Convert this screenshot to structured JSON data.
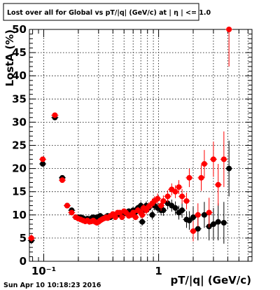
{
  "title": "Lost over all for Global vs pT/|q| (GeV/c) at | η | <= 1.0",
  "timestamp": "Sun Apr 10 10:18:23 2016",
  "chart_data": {
    "type": "scatter",
    "title": "Lost over all for Global vs pT/|q| (GeV/c) at | η | <= 1.0",
    "xlabel": "pT/|q| (GeV/c)",
    "ylabel": "LostA (%)",
    "xscale": "log",
    "xlim": [
      0.075,
      6.5
    ],
    "ylim": [
      0,
      50
    ],
    "x_tick_labels": [
      "10⁻¹",
      "1"
    ],
    "y_tick_labels": [
      "0",
      "5",
      "10",
      "15",
      "20",
      "25",
      "30",
      "35",
      "40",
      "45",
      "50"
    ],
    "grid": true,
    "colors": {
      "black_series": "#000000",
      "red_series": "#ff0000"
    },
    "series": [
      {
        "color": "#000000",
        "points": [
          {
            "x": 0.078,
            "y": 4.5,
            "err": 0.8
          },
          {
            "x": 0.098,
            "y": 21.0,
            "err": 0.4
          },
          {
            "x": 0.125,
            "y": 31.0,
            "err": 0.4
          },
          {
            "x": 0.145,
            "y": 18.0,
            "err": 0.4
          },
          {
            "x": 0.16,
            "y": 12.0,
            "err": 0.4
          },
          {
            "x": 0.175,
            "y": 11.0,
            "err": 0.3
          },
          {
            "x": 0.19,
            "y": 9.5,
            "err": 0.3
          },
          {
            "x": 0.2,
            "y": 9.5,
            "err": 0.3
          },
          {
            "x": 0.21,
            "y": 9.5,
            "err": 0.3
          },
          {
            "x": 0.22,
            "y": 9.3,
            "err": 0.3
          },
          {
            "x": 0.23,
            "y": 9.0,
            "err": 0.3
          },
          {
            "x": 0.24,
            "y": 9.2,
            "err": 0.3
          },
          {
            "x": 0.25,
            "y": 9.0,
            "err": 0.3
          },
          {
            "x": 0.26,
            "y": 9.3,
            "err": 0.3
          },
          {
            "x": 0.27,
            "y": 9.5,
            "err": 0.3
          },
          {
            "x": 0.28,
            "y": 9.0,
            "err": 0.3
          },
          {
            "x": 0.29,
            "y": 9.5,
            "err": 0.3
          },
          {
            "x": 0.3,
            "y": 9.6,
            "err": 0.4
          },
          {
            "x": 0.31,
            "y": 9.8,
            "err": 0.4
          },
          {
            "x": 0.32,
            "y": 9.5,
            "err": 0.4
          },
          {
            "x": 0.33,
            "y": 9.2,
            "err": 0.4
          },
          {
            "x": 0.34,
            "y": 9.4,
            "err": 0.4
          },
          {
            "x": 0.35,
            "y": 9.6,
            "err": 0.4
          },
          {
            "x": 0.36,
            "y": 9.8,
            "err": 0.4
          },
          {
            "x": 0.38,
            "y": 9.5,
            "err": 0.4
          },
          {
            "x": 0.4,
            "y": 9.8,
            "err": 0.4
          },
          {
            "x": 0.42,
            "y": 10.0,
            "err": 0.5
          },
          {
            "x": 0.44,
            "y": 10.2,
            "err": 0.5
          },
          {
            "x": 0.46,
            "y": 10.0,
            "err": 0.5
          },
          {
            "x": 0.48,
            "y": 10.0,
            "err": 0.5
          },
          {
            "x": 0.5,
            "y": 10.5,
            "err": 0.5
          },
          {
            "x": 0.52,
            "y": 10.3,
            "err": 0.5
          },
          {
            "x": 0.55,
            "y": 10.8,
            "err": 0.6
          },
          {
            "x": 0.58,
            "y": 10.5,
            "err": 0.6
          },
          {
            "x": 0.6,
            "y": 11.0,
            "err": 0.6
          },
          {
            "x": 0.63,
            "y": 10.6,
            "err": 0.6
          },
          {
            "x": 0.66,
            "y": 11.5,
            "err": 0.7
          },
          {
            "x": 0.7,
            "y": 12.0,
            "err": 0.8
          },
          {
            "x": 0.72,
            "y": 8.5,
            "err": 0.8
          },
          {
            "x": 0.74,
            "y": 11.0,
            "err": 0.8
          },
          {
            "x": 0.78,
            "y": 12.0,
            "err": 0.9
          },
          {
            "x": 0.82,
            "y": 11.5,
            "err": 0.9
          },
          {
            "x": 0.88,
            "y": 10.0,
            "err": 1.0
          },
          {
            "x": 0.92,
            "y": 12.0,
            "err": 1.0
          },
          {
            "x": 0.98,
            "y": 11.5,
            "err": 1.1
          },
          {
            "x": 1.05,
            "y": 11.0,
            "err": 1.1
          },
          {
            "x": 1.1,
            "y": 11.0,
            "err": 1.2
          },
          {
            "x": 1.2,
            "y": 12.5,
            "err": 1.3
          },
          {
            "x": 1.3,
            "y": 12.0,
            "err": 1.3
          },
          {
            "x": 1.4,
            "y": 11.5,
            "err": 1.4
          },
          {
            "x": 1.5,
            "y": 10.5,
            "err": 1.5
          },
          {
            "x": 1.6,
            "y": 11.0,
            "err": 1.6
          },
          {
            "x": 1.75,
            "y": 9.0,
            "err": 1.8
          },
          {
            "x": 1.85,
            "y": 8.8,
            "err": 2.0
          },
          {
            "x": 2.0,
            "y": 9.5,
            "err": 2.2
          },
          {
            "x": 2.2,
            "y": 7.0,
            "err": 2.5
          },
          {
            "x": 2.5,
            "y": 10.0,
            "err": 2.8
          },
          {
            "x": 2.75,
            "y": 7.5,
            "err": 3.0
          },
          {
            "x": 3.0,
            "y": 8.0,
            "err": 3.5
          },
          {
            "x": 3.3,
            "y": 8.5,
            "err": 4.0
          },
          {
            "x": 3.7,
            "y": 8.3,
            "err": 4.5
          },
          {
            "x": 4.1,
            "y": 20.0,
            "err": 6.0
          }
        ]
      },
      {
        "color": "#ff0000",
        "points": [
          {
            "x": 0.078,
            "y": 5.0,
            "err": 0.8
          },
          {
            "x": 0.098,
            "y": 22.0,
            "err": 0.4
          },
          {
            "x": 0.125,
            "y": 31.5,
            "err": 0.4
          },
          {
            "x": 0.145,
            "y": 17.5,
            "err": 0.4
          },
          {
            "x": 0.16,
            "y": 12.0,
            "err": 0.4
          },
          {
            "x": 0.175,
            "y": 10.5,
            "err": 0.3
          },
          {
            "x": 0.19,
            "y": 9.5,
            "err": 0.3
          },
          {
            "x": 0.2,
            "y": 9.2,
            "err": 0.3
          },
          {
            "x": 0.21,
            "y": 9.0,
            "err": 0.3
          },
          {
            "x": 0.22,
            "y": 8.8,
            "err": 0.3
          },
          {
            "x": 0.23,
            "y": 8.6,
            "err": 0.3
          },
          {
            "x": 0.24,
            "y": 8.8,
            "err": 0.3
          },
          {
            "x": 0.25,
            "y": 8.5,
            "err": 0.3
          },
          {
            "x": 0.26,
            "y": 8.6,
            "err": 0.3
          },
          {
            "x": 0.27,
            "y": 8.8,
            "err": 0.3
          },
          {
            "x": 0.28,
            "y": 8.5,
            "err": 0.3
          },
          {
            "x": 0.29,
            "y": 8.3,
            "err": 0.3
          },
          {
            "x": 0.3,
            "y": 8.5,
            "err": 0.4
          },
          {
            "x": 0.31,
            "y": 8.8,
            "err": 0.4
          },
          {
            "x": 0.32,
            "y": 9.0,
            "err": 0.4
          },
          {
            "x": 0.33,
            "y": 9.2,
            "err": 0.4
          },
          {
            "x": 0.34,
            "y": 9.3,
            "err": 0.4
          },
          {
            "x": 0.35,
            "y": 9.5,
            "err": 0.4
          },
          {
            "x": 0.36,
            "y": 9.3,
            "err": 0.4
          },
          {
            "x": 0.38,
            "y": 9.8,
            "err": 0.4
          },
          {
            "x": 0.4,
            "y": 10.2,
            "err": 0.4
          },
          {
            "x": 0.42,
            "y": 9.5,
            "err": 0.5
          },
          {
            "x": 0.44,
            "y": 10.5,
            "err": 0.5
          },
          {
            "x": 0.46,
            "y": 10.5,
            "err": 0.5
          },
          {
            "x": 0.48,
            "y": 9.5,
            "err": 0.5
          },
          {
            "x": 0.5,
            "y": 10.8,
            "err": 0.5
          },
          {
            "x": 0.52,
            "y": 10.5,
            "err": 0.5
          },
          {
            "x": 0.55,
            "y": 9.8,
            "err": 0.6
          },
          {
            "x": 0.58,
            "y": 10.0,
            "err": 0.6
          },
          {
            "x": 0.6,
            "y": 10.5,
            "err": 0.6
          },
          {
            "x": 0.63,
            "y": 9.5,
            "err": 0.6
          },
          {
            "x": 0.66,
            "y": 11.0,
            "err": 0.7
          },
          {
            "x": 0.7,
            "y": 10.5,
            "err": 0.8
          },
          {
            "x": 0.72,
            "y": 10.0,
            "err": 0.8
          },
          {
            "x": 0.74,
            "y": 11.5,
            "err": 0.8
          },
          {
            "x": 0.78,
            "y": 11.0,
            "err": 0.9
          },
          {
            "x": 0.82,
            "y": 11.8,
            "err": 0.9
          },
          {
            "x": 0.88,
            "y": 12.5,
            "err": 1.0
          },
          {
            "x": 0.92,
            "y": 13.0,
            "err": 1.0
          },
          {
            "x": 0.98,
            "y": 13.5,
            "err": 1.1
          },
          {
            "x": 1.05,
            "y": 12.0,
            "err": 1.1
          },
          {
            "x": 1.1,
            "y": 13.0,
            "err": 1.2
          },
          {
            "x": 1.2,
            "y": 14.0,
            "err": 1.3
          },
          {
            "x": 1.3,
            "y": 15.5,
            "err": 1.3
          },
          {
            "x": 1.4,
            "y": 15.0,
            "err": 1.4
          },
          {
            "x": 1.5,
            "y": 16.0,
            "err": 1.5
          },
          {
            "x": 1.6,
            "y": 14.0,
            "err": 1.6
          },
          {
            "x": 1.75,
            "y": 13.0,
            "err": 1.8
          },
          {
            "x": 1.85,
            "y": 18.0,
            "err": 2.0
          },
          {
            "x": 2.0,
            "y": 6.5,
            "err": 2.2
          },
          {
            "x": 2.2,
            "y": 10.0,
            "err": 2.5
          },
          {
            "x": 2.35,
            "y": 18.0,
            "err": 2.8
          },
          {
            "x": 2.5,
            "y": 21.0,
            "err": 3.0
          },
          {
            "x": 2.75,
            "y": 10.5,
            "err": 3.2
          },
          {
            "x": 3.0,
            "y": 22.0,
            "err": 3.8
          },
          {
            "x": 3.3,
            "y": 16.5,
            "err": 4.5
          },
          {
            "x": 3.7,
            "y": 22.0,
            "err": 6.0
          },
          {
            "x": 4.1,
            "y": 50.0,
            "err": 8.0
          }
        ]
      }
    ]
  }
}
